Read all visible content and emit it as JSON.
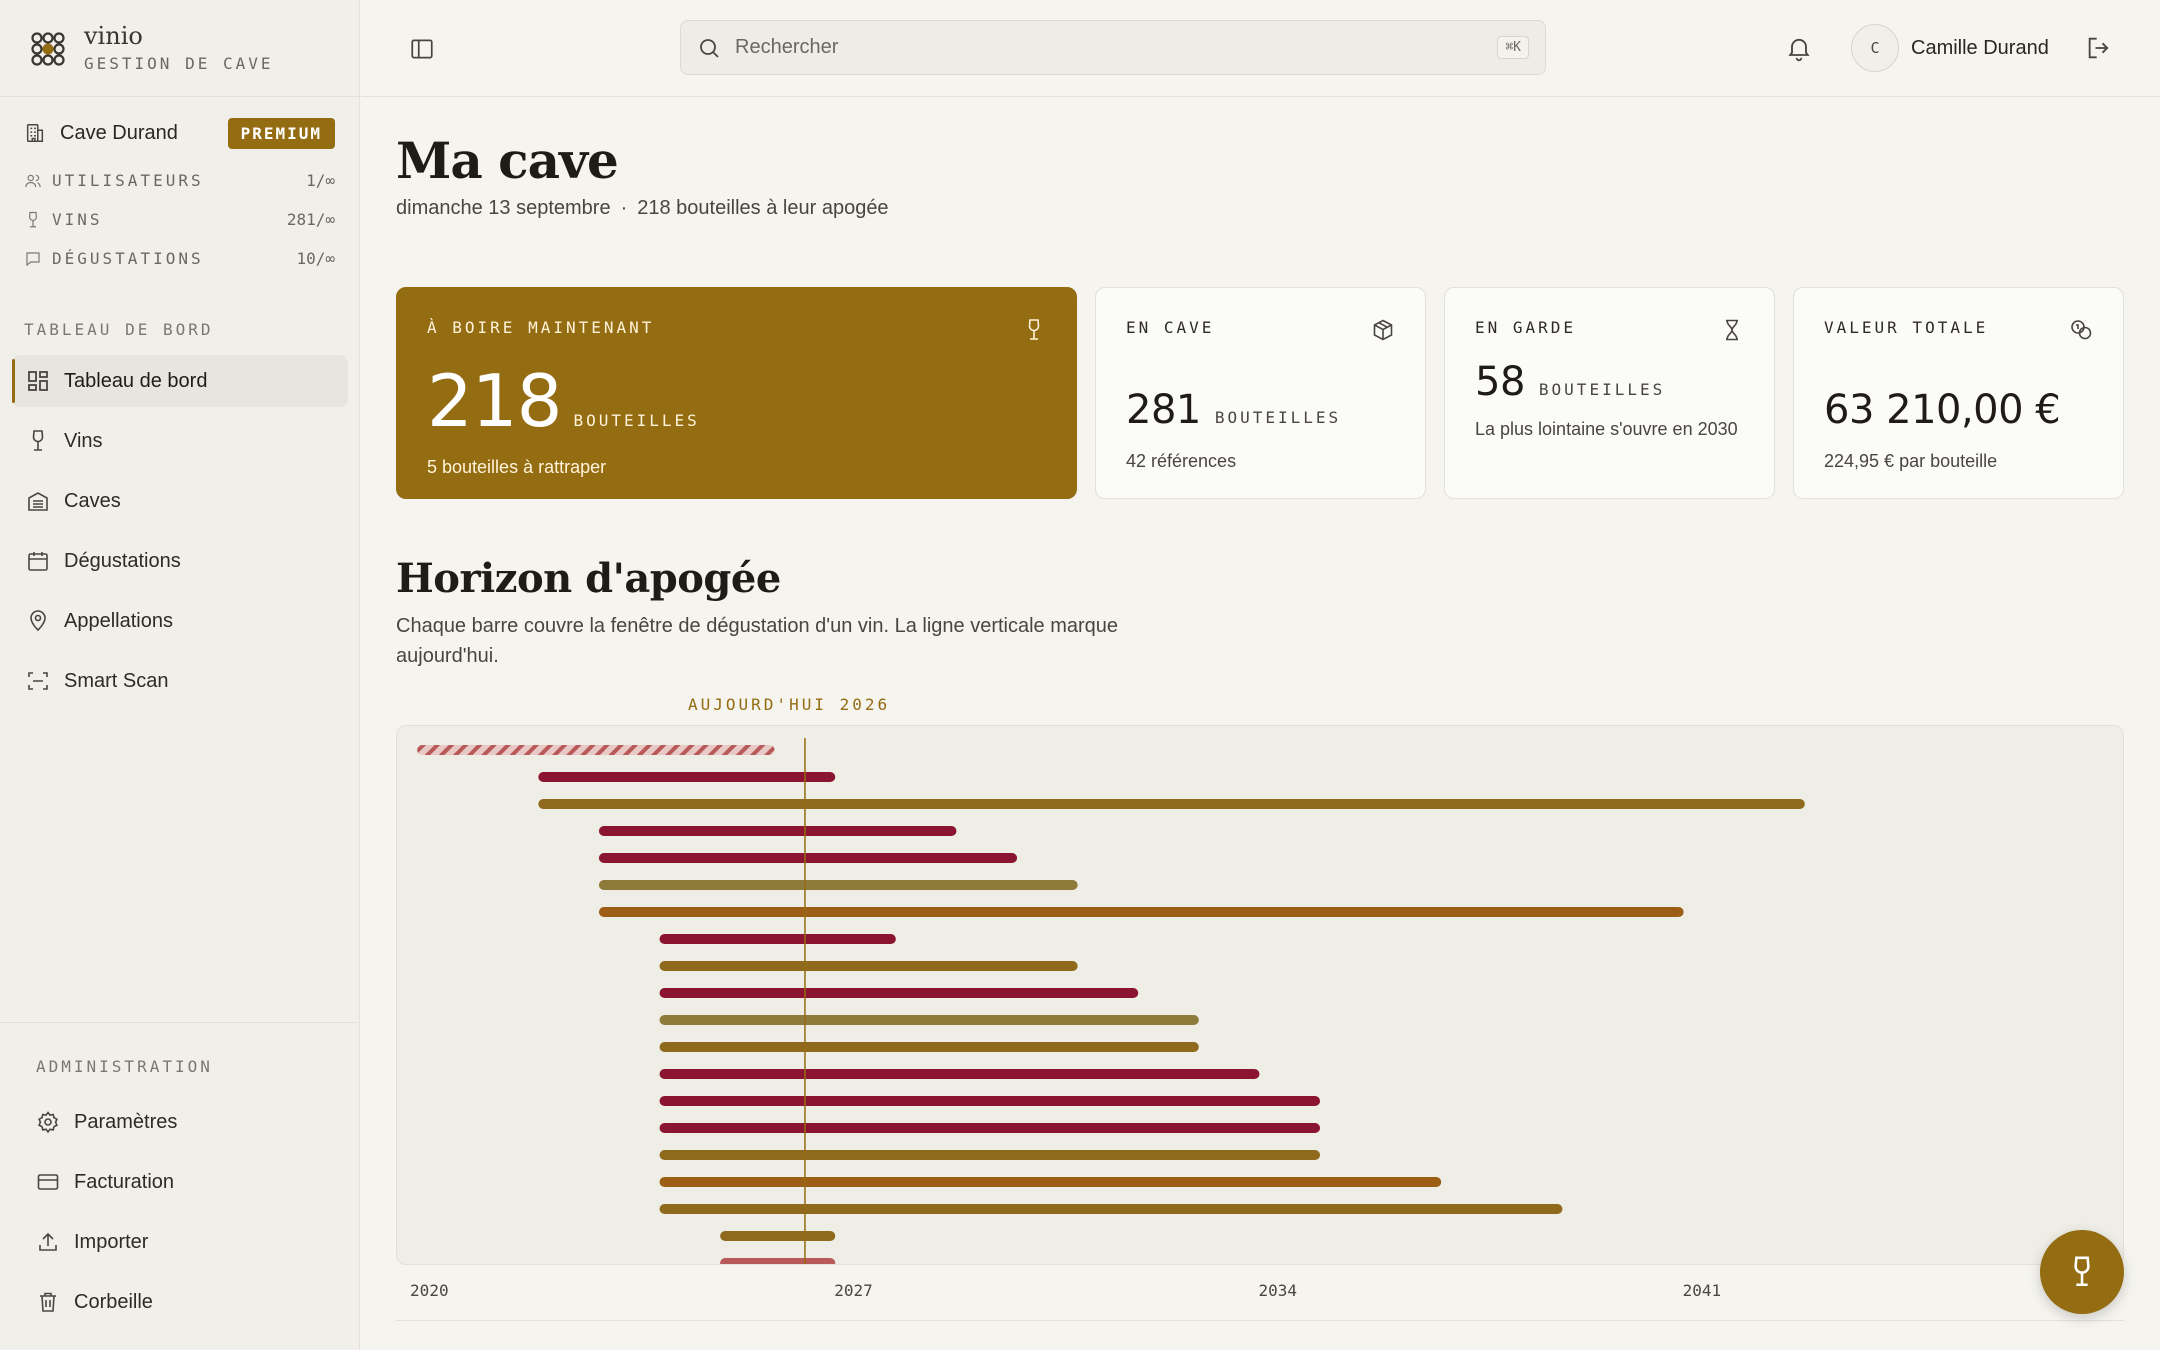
{
  "brand": {
    "name": "vinio",
    "subtitle": "GESTION DE CAVE"
  },
  "org": {
    "name": "Cave Durand",
    "plan": "PREMIUM",
    "quotas": [
      {
        "label": "UTILISATEURS",
        "value": "1/∞",
        "icon": "users-icon"
      },
      {
        "label": "VINS",
        "value": "281/∞",
        "icon": "wine-glass-icon"
      },
      {
        "label": "DÉGUSTATIONS",
        "value": "10/∞",
        "icon": "message-icon"
      }
    ]
  },
  "nav": {
    "section": "TABLEAU DE BORD",
    "items": [
      {
        "label": "Tableau de bord",
        "icon": "dashboard-icon",
        "active": true
      },
      {
        "label": "Vins",
        "icon": "wine-glass-icon"
      },
      {
        "label": "Caves",
        "icon": "cellar-icon"
      },
      {
        "label": "Dégustations",
        "icon": "calendar-icon"
      },
      {
        "label": "Appellations",
        "icon": "map-pin-icon"
      },
      {
        "label": "Smart Scan",
        "icon": "scan-icon"
      }
    ]
  },
  "admin": {
    "section": "ADMINISTRATION",
    "items": [
      {
        "label": "Paramètres",
        "icon": "gear-icon"
      },
      {
        "label": "Facturation",
        "icon": "credit-card-icon"
      },
      {
        "label": "Importer",
        "icon": "upload-icon"
      },
      {
        "label": "Corbeille",
        "icon": "trash-icon"
      }
    ]
  },
  "topbar": {
    "search_placeholder": "Rechercher",
    "search_shortcut": "⌘K",
    "user_initial": "C",
    "user_name": "Camille Durand"
  },
  "page": {
    "title": "Ma cave",
    "date": "dimanche 13 septembre",
    "separator": "·",
    "apogee_summary": "218 bouteilles à leur apogée"
  },
  "cards": {
    "drink_now": {
      "label": "À BOIRE MAINTENANT",
      "value": "218",
      "unit": "BOUTEILLES",
      "note": "5 bouteilles à rattraper",
      "icon": "wine-glass-icon"
    },
    "in_cellar": {
      "label": "EN CAVE",
      "value": "281",
      "unit": "BOUTEILLES",
      "note": "42 références",
      "icon": "box-icon"
    },
    "aging": {
      "label": "EN GARDE",
      "value": "58",
      "unit": "BOUTEILLES",
      "note": "La plus lointaine s'ouvre en 2030",
      "icon": "hourglass-icon"
    },
    "total_value": {
      "label": "VALEUR TOTALE",
      "value": "63 210,00 €",
      "note": "224,95 € par bouteille",
      "icon": "coins-icon"
    }
  },
  "horizon": {
    "title": "Horizon d'apogée",
    "description": "Chaque barre couvre la fenêtre de dégustation d'un vin. La ligne verticale marque aujourd'hui.",
    "today_label": "AUJOURD'HUI 2026"
  },
  "colors": {
    "accent": "#946c12",
    "red_wine": "#8b1530",
    "gold": "#8f6a1c",
    "amber": "#9c5e14",
    "olive": "#8e7a3a",
    "past": "#b85a5a"
  },
  "chart_data": {
    "type": "bar",
    "orientation": "horizontal-range",
    "x_ticks": [
      "2020",
      "2027",
      "2034",
      "2041"
    ],
    "xlim": [
      2019.9,
      2049.2
    ],
    "today": 2026.5,
    "bars": [
      {
        "start": 2020.1,
        "end": 2026.0,
        "kind": "past"
      },
      {
        "start": 2022.1,
        "end": 2027.0,
        "kind": "red_wine"
      },
      {
        "start": 2022.1,
        "end": 2043.0,
        "kind": "gold"
      },
      {
        "start": 2023.1,
        "end": 2029.0,
        "kind": "red_wine"
      },
      {
        "start": 2023.1,
        "end": 2030.0,
        "kind": "red_wine"
      },
      {
        "start": 2023.1,
        "end": 2031.0,
        "kind": "olive"
      },
      {
        "start": 2023.1,
        "end": 2041.0,
        "kind": "amber"
      },
      {
        "start": 2024.1,
        "end": 2028.0,
        "kind": "red_wine"
      },
      {
        "start": 2024.1,
        "end": 2031.0,
        "kind": "gold"
      },
      {
        "start": 2024.1,
        "end": 2032.0,
        "kind": "red_wine"
      },
      {
        "start": 2024.1,
        "end": 2033.0,
        "kind": "olive"
      },
      {
        "start": 2024.1,
        "end": 2033.0,
        "kind": "gold"
      },
      {
        "start": 2024.1,
        "end": 2034.0,
        "kind": "red_wine"
      },
      {
        "start": 2024.1,
        "end": 2035.0,
        "kind": "red_wine"
      },
      {
        "start": 2024.1,
        "end": 2035.0,
        "kind": "red_wine"
      },
      {
        "start": 2024.1,
        "end": 2035.0,
        "kind": "gold"
      },
      {
        "start": 2024.1,
        "end": 2037.0,
        "kind": "amber"
      },
      {
        "start": 2024.1,
        "end": 2039.0,
        "kind": "gold"
      },
      {
        "start": 2025.1,
        "end": 2027.0,
        "kind": "gold"
      },
      {
        "start": 2025.1,
        "end": 2027.0,
        "kind": "past_solid"
      }
    ]
  }
}
